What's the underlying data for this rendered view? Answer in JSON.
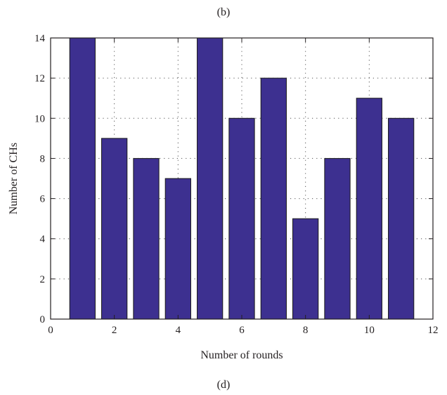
{
  "figure": {
    "top_caption": "(b)",
    "bottom_caption": "(d)"
  },
  "colors": {
    "bar_fill": "#3d3090",
    "bar_stroke": "#1a1a1a",
    "axis": "#231f20",
    "grid": "#555555"
  },
  "chart_data": {
    "type": "bar",
    "title": "",
    "xlabel": "Number of rounds",
    "ylabel": "Number of CHs",
    "x": [
      1,
      2,
      3,
      4,
      5,
      6,
      7,
      8,
      9,
      10,
      11
    ],
    "values": [
      14,
      9,
      8,
      7,
      14,
      10,
      12,
      5,
      8,
      11,
      10
    ],
    "xlim": [
      0,
      12
    ],
    "ylim": [
      0,
      14
    ],
    "xticks": [
      0,
      2,
      4,
      6,
      8,
      10,
      12
    ],
    "yticks": [
      0,
      2,
      4,
      6,
      8,
      10,
      12,
      14
    ],
    "grid": true,
    "grid_style": "dotted",
    "legend": false
  }
}
